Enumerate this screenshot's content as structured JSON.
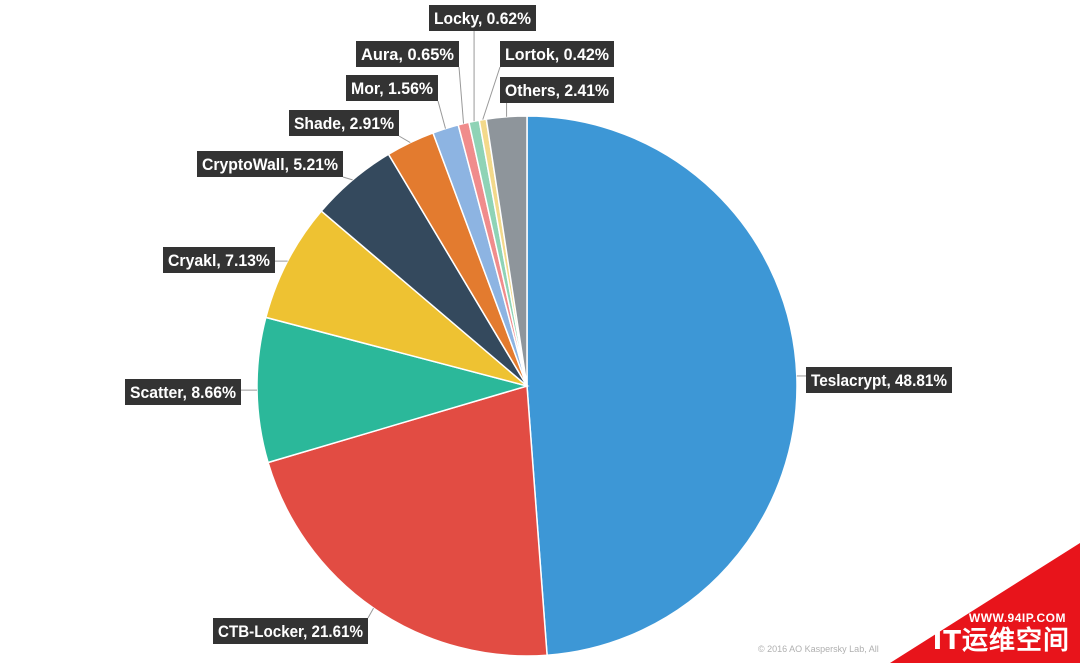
{
  "chart_data": {
    "type": "pie",
    "start_angle_deg": 0,
    "direction": "clockwise",
    "slices": [
      {
        "name": "Teslacrypt",
        "value": 48.81,
        "label": "Teslacrypt, 48.81%",
        "color": "#3d97d6"
      },
      {
        "name": "CTB-Locker",
        "value": 21.61,
        "label": "CTB-Locker, 21.61%",
        "color": "#e24c43"
      },
      {
        "name": "Scatter",
        "value": 8.66,
        "label": "Scatter, 8.66%",
        "color": "#2bb89a"
      },
      {
        "name": "Cryakl",
        "value": 7.13,
        "label": "Cryakl, 7.13%",
        "color": "#eec232"
      },
      {
        "name": "CryptoWall",
        "value": 5.21,
        "label": "CryptoWall, 5.21%",
        "color": "#34495d"
      },
      {
        "name": "Shade",
        "value": 2.91,
        "label": "Shade, 2.91%",
        "color": "#e37b2f"
      },
      {
        "name": "Mor",
        "value": 1.56,
        "label": "Mor, 1.56%",
        "color": "#8db4e2"
      },
      {
        "name": "Aura",
        "value": 0.65,
        "label": "Aura, 0.65%",
        "color": "#f08c8c"
      },
      {
        "name": "Locky",
        "value": 0.62,
        "label": "Locky, 0.62%",
        "color": "#8fd3b6"
      },
      {
        "name": "Lortok",
        "value": 0.42,
        "label": "Lortok, 0.42%",
        "color": "#f3d98b"
      },
      {
        "name": "Others",
        "value": 2.41,
        "label": "Others, 2.41%",
        "color": "#8e959b"
      }
    ]
  },
  "footer": {
    "copyright": "© 2016 AO Kaspersky Lab, All"
  },
  "watermark": {
    "url": "WWW.94IP.COM",
    "name": "IT运维空间",
    "color": "#e8141b"
  }
}
